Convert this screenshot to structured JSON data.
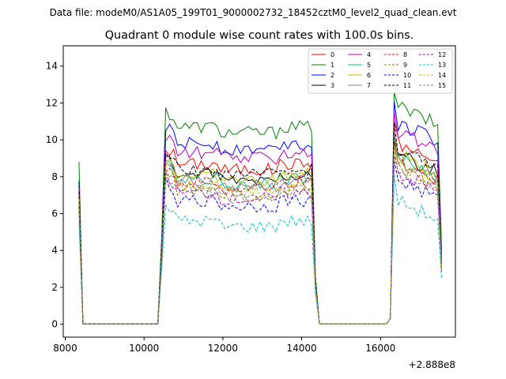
{
  "chart_data": {
    "type": "line",
    "suptitle": "Data file: modeM0/AS1A05_199T01_9000002732_18452cztM0_level2_quad_clean.evt",
    "title": "Quadrant 0 module wise count rates with 100.0s bins.",
    "xlabel": "",
    "ylabel": "",
    "x_offset_label": "+2.888e8",
    "xlim": [
      7950,
      17900
    ],
    "ylim": [
      -0.7,
      15.1
    ],
    "x_ticks": [
      8000,
      10000,
      12000,
      14000,
      16000
    ],
    "x_tick_labels": [
      "8000",
      "10000",
      "12000",
      "14000",
      "16000"
    ],
    "y_ticks": [
      0,
      2,
      4,
      6,
      8,
      10,
      12,
      14
    ],
    "y_tick_labels": [
      "0",
      "2",
      "4",
      "6",
      "8",
      "10",
      "12",
      "14"
    ],
    "legend_position": "top-right",
    "segments": [
      {
        "start": 8350,
        "points": 2
      },
      {
        "start": 10350,
        "points": 40
      },
      {
        "start": 16250,
        "points": 13
      }
    ],
    "gap_level": 0.02,
    "series": [
      {
        "name": "0",
        "color": "#ff0000",
        "dash": "solid",
        "level": 8.7,
        "edge": 7.8
      },
      {
        "name": "1",
        "color": "#008000",
        "dash": "solid",
        "level": 10.7,
        "edge": 8.8
      },
      {
        "name": "2",
        "color": "#0000ff",
        "dash": "solid",
        "level": 9.8,
        "edge": 7.7
      },
      {
        "name": "3",
        "color": "#000000",
        "dash": "solid",
        "level": 8.1,
        "edge": 7.5
      },
      {
        "name": "4",
        "color": "#bf00bf",
        "dash": "solid",
        "level": 9.3,
        "edge": 7.4
      },
      {
        "name": "5",
        "color": "#00bf9f",
        "dash": "solid",
        "level": 7.9,
        "edge": 7.0
      },
      {
        "name": "6",
        "color": "#bfbf00",
        "dash": "solid",
        "level": 8.1,
        "edge": 7.1
      },
      {
        "name": "7",
        "color": "#808080",
        "dash": "solid",
        "level": 7.8,
        "edge": 6.8
      },
      {
        "name": "8",
        "color": "#ff0000",
        "dash": "dashed",
        "level": 7.7,
        "edge": 7.0
      },
      {
        "name": "9",
        "color": "#808000",
        "dash": "dashed",
        "level": 7.3,
        "edge": 6.6
      },
      {
        "name": "10",
        "color": "#0000ff",
        "dash": "dashed",
        "level": 6.7,
        "edge": 6.4
      },
      {
        "name": "11",
        "color": "#000000",
        "dash": "dashed",
        "level": 8.4,
        "edge": 7.2
      },
      {
        "name": "12",
        "color": "#bf00bf",
        "dash": "dashed",
        "level": 7.1,
        "edge": 6.3
      },
      {
        "name": "13",
        "color": "#00bfbf",
        "dash": "dashed",
        "level": 5.6,
        "edge": 5.5
      },
      {
        "name": "14",
        "color": "#bfbf00",
        "dash": "dashed",
        "level": 7.5,
        "edge": 6.8
      },
      {
        "name": "15",
        "color": "#808080",
        "dash": "dashed",
        "level": 7.2,
        "edge": 6.5
      }
    ]
  }
}
